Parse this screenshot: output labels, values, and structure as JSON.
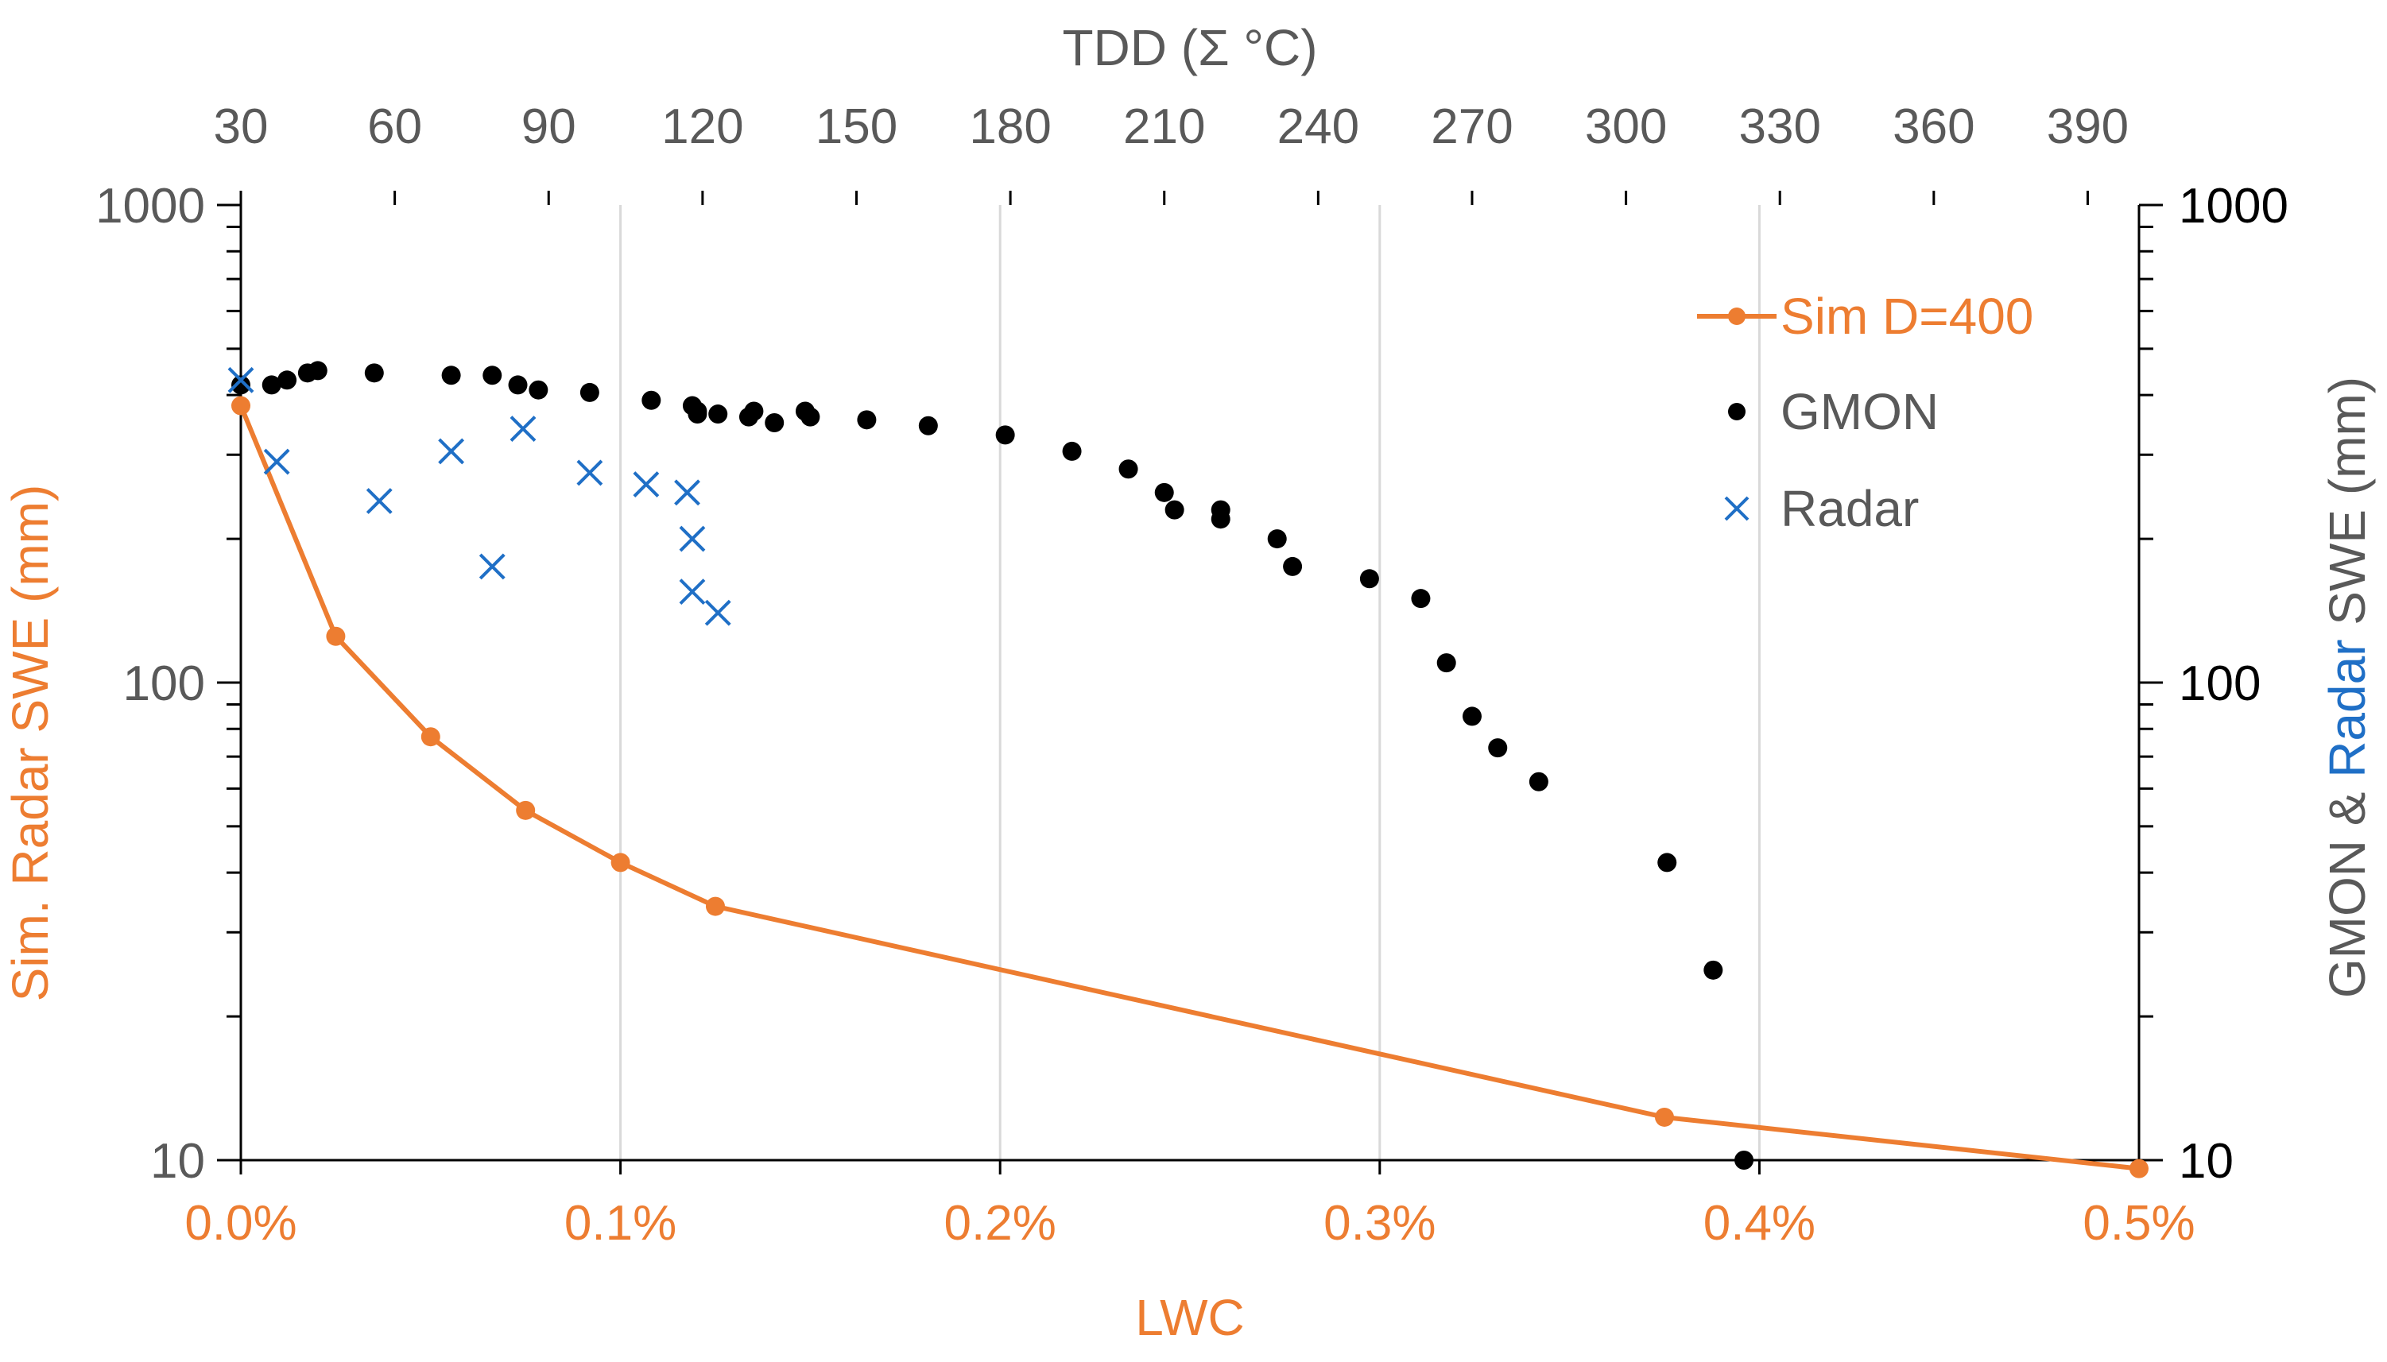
{
  "chart_data": {
    "type": "scatter",
    "title": "",
    "x_axis_bottom": {
      "label": "LWC",
      "range": [
        0,
        0.005
      ],
      "ticks": [
        0,
        0.001,
        0.002,
        0.003,
        0.004,
        0.005
      ],
      "tick_labels": [
        "0.0%",
        "0.1%",
        "0.2%",
        "0.3%",
        "0.4%",
        "0.5%"
      ],
      "color": "#ED7D31"
    },
    "x_axis_top": {
      "label": "TDD (Σ °C)",
      "range": [
        30,
        400
      ],
      "ticks": [
        30,
        60,
        90,
        120,
        150,
        180,
        210,
        240,
        270,
        300,
        330,
        360,
        390
      ],
      "tick_labels": [
        "30",
        "60",
        "90",
        "120",
        "150",
        "180",
        "210",
        "240",
        "270",
        "300",
        "330",
        "360",
        "390"
      ]
    },
    "y_axis_left": {
      "label": "Sim. Radar SWE (mm)",
      "scale": "log",
      "range": [
        10,
        1000
      ],
      "ticks": [
        10,
        100,
        1000
      ],
      "tick_labels": [
        "10",
        "100",
        "1000"
      ],
      "color": "#ED7D31"
    },
    "y_axis_right": {
      "label_parts": [
        {
          "text": "GMON & ",
          "color": "#595959"
        },
        {
          "text": "Radar",
          "color": "#1F6FC6"
        },
        {
          "text": "  SWE (mm)",
          "color": "#595959"
        }
      ],
      "scale": "log",
      "range": [
        10,
        1000
      ],
      "ticks": [
        10,
        100,
        1000
      ],
      "tick_labels": [
        "10",
        "100",
        "1000"
      ]
    },
    "grid": "vertical",
    "legend_position": "top-right",
    "series": [
      {
        "name": "Sim D=400",
        "axis": "bottom-left",
        "style": "line-marker",
        "color": "#ED7D31",
        "x": [
          0.0,
          0.00025,
          0.0005,
          0.00075,
          0.001,
          0.00125,
          0.00375,
          0.005
        ],
        "y": [
          380,
          125,
          77,
          54,
          42,
          34,
          12.3,
          9.6
        ]
      },
      {
        "name": "GMON",
        "axis": "top-right",
        "style": "marker-dot",
        "color": "#000000",
        "x": [
          30,
          36,
          39,
          43,
          45,
          56,
          71,
          79,
          84,
          88,
          98,
          110,
          118,
          119,
          119,
          123,
          129,
          130,
          134,
          140,
          141,
          152,
          164,
          179,
          192,
          203,
          210,
          212,
          221,
          221,
          232,
          235,
          250,
          260,
          265,
          270,
          275,
          283,
          308,
          317,
          323
        ],
        "y": [
          420,
          420,
          430,
          445,
          450,
          445,
          440,
          440,
          420,
          410,
          405,
          390,
          380,
          365,
          370,
          365,
          360,
          370,
          350,
          370,
          360,
          355,
          345,
          330,
          305,
          280,
          250,
          230,
          230,
          220,
          200,
          175,
          165,
          150,
          110,
          85,
          73,
          62,
          42,
          25,
          10
        ]
      },
      {
        "name": "Radar",
        "axis": "top-right",
        "style": "marker-x",
        "color": "#1F6FC6",
        "x": [
          30,
          37,
          57,
          71,
          79,
          85,
          98,
          109,
          117,
          118,
          118,
          123
        ],
        "y": [
          430,
          290,
          240,
          305,
          175,
          340,
          275,
          260,
          250,
          200,
          155,
          140
        ]
      }
    ]
  }
}
